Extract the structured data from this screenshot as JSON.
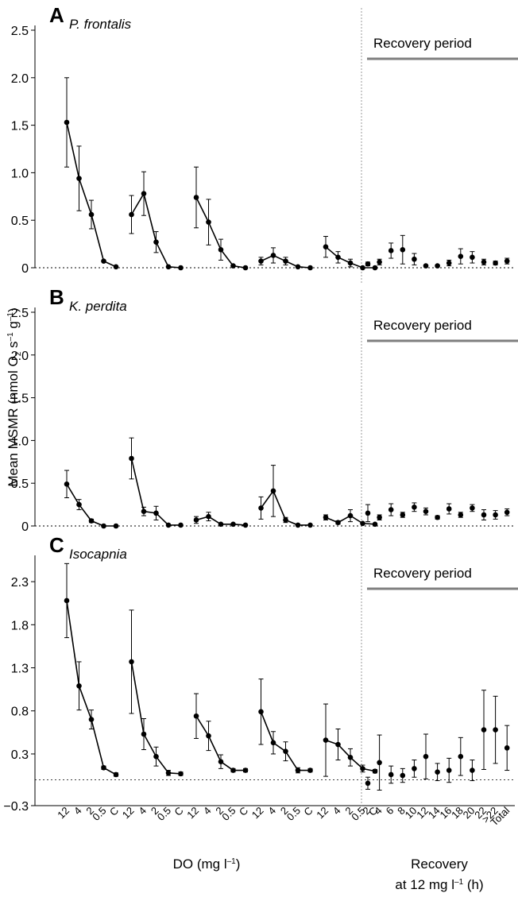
{
  "figure": {
    "ylabel_html_parts": [
      "Mean MSMR (nmol O",
      "2",
      " s",
      "–1",
      " g",
      "–1",
      ")"
    ],
    "xlabel_do": [
      "DO (mg l",
      "–1",
      ")"
    ],
    "xlabel_recovery_line1": "Recovery",
    "xlabel_recovery_line2": [
      "at 12 mg l",
      "–1",
      " (h)"
    ],
    "recovery_label": "Recovery period",
    "do_tick_labels": [
      "12",
      "4",
      "2",
      "0.5",
      "C"
    ],
    "recovery_tick_labels": [
      "2",
      "4",
      "6",
      "8",
      "10",
      "12",
      "14",
      "16",
      "18",
      "20",
      "22",
      ">22",
      "Total"
    ],
    "colors": {
      "line": "#000000",
      "recovery_bar": "#7f7f7f",
      "divider": "#9a9a9a"
    }
  },
  "chart_data": [
    {
      "type": "line",
      "panel_letter": "A",
      "title": "P. frontalis",
      "ylim": [
        0,
        2.5
      ],
      "yticks": [
        "0",
        "0.5",
        "1.0",
        "1.5",
        "2.0",
        "2.5"
      ],
      "ytick_values": [
        0,
        0.5,
        1.0,
        1.5,
        2.0,
        2.5
      ],
      "series": [
        {
          "values": [
            1.53,
            0.94,
            0.56,
            0.07,
            0.01
          ],
          "err": [
            0.47,
            0.34,
            0.15,
            0.01,
            0.01
          ]
        },
        {
          "values": [
            0.56,
            0.78,
            0.27,
            0.01,
            0.0
          ],
          "err": [
            0.2,
            0.23,
            0.11,
            0.01,
            0.01
          ]
        },
        {
          "values": [
            0.74,
            0.48,
            0.19,
            0.02,
            0.0
          ],
          "err": [
            0.32,
            0.24,
            0.11,
            0.01,
            0.01
          ]
        },
        {
          "values": [
            0.07,
            0.13,
            0.07,
            0.01,
            0.0
          ],
          "err": [
            0.04,
            0.08,
            0.04,
            0.01,
            0.01
          ]
        },
        {
          "values": [
            0.22,
            0.11,
            0.05,
            0.0,
            0.0
          ],
          "err": [
            0.11,
            0.06,
            0.04,
            0.01,
            0.01
          ]
        }
      ],
      "recovery": {
        "values": [
          0.04,
          0.06,
          0.18,
          0.19,
          0.09,
          0.02,
          0.02,
          0.05,
          0.12,
          0.11,
          0.06,
          0.05,
          0.07
        ],
        "err": [
          0.02,
          0.03,
          0.08,
          0.15,
          0.06,
          0.01,
          0.01,
          0.03,
          0.08,
          0.06,
          0.03,
          0.02,
          0.03
        ]
      }
    },
    {
      "type": "line",
      "panel_letter": "B",
      "title": "K. perdita",
      "ylim": [
        0,
        2.5
      ],
      "yticks": [
        "0",
        "0.5",
        "1.0",
        "1.5",
        "2.0",
        "2.5"
      ],
      "ytick_values": [
        0,
        0.5,
        1.0,
        1.5,
        2.0,
        2.5
      ],
      "series": [
        {
          "values": [
            0.49,
            0.25,
            0.06,
            0.0,
            0.0
          ],
          "err": [
            0.16,
            0.06,
            0.02,
            0.01,
            0.01
          ]
        },
        {
          "values": [
            0.79,
            0.17,
            0.15,
            0.01,
            0.01
          ],
          "err": [
            0.24,
            0.05,
            0.08,
            0.01,
            0.01
          ]
        },
        {
          "values": [
            0.07,
            0.11,
            0.02,
            0.02,
            0.01
          ],
          "err": [
            0.04,
            0.05,
            0.01,
            0.01,
            0.01
          ]
        },
        {
          "values": [
            0.21,
            0.41,
            0.07,
            0.01,
            0.01
          ],
          "err": [
            0.13,
            0.3,
            0.03,
            0.01,
            0.01
          ]
        },
        {
          "values": [
            0.1,
            0.04,
            0.12,
            0.03,
            0.02
          ],
          "err": [
            0.03,
            0.02,
            0.07,
            0.01,
            0.01
          ]
        }
      ],
      "recovery": {
        "values": [
          0.15,
          0.1,
          0.19,
          0.13,
          0.22,
          0.17,
          0.1,
          0.2,
          0.13,
          0.21,
          0.13,
          0.13,
          0.16
        ],
        "err": [
          0.1,
          0.03,
          0.07,
          0.03,
          0.05,
          0.04,
          0.02,
          0.06,
          0.03,
          0.04,
          0.06,
          0.05,
          0.04
        ]
      }
    },
    {
      "type": "line",
      "panel_letter": "C",
      "title": "Isocapnia",
      "ylim": [
        -0.3,
        2.55
      ],
      "yticks": [
        "−0.3",
        "0.3",
        "0.8",
        "1.3",
        "1.8",
        "2.3"
      ],
      "ytick_values": [
        -0.3,
        0.3,
        0.8,
        1.3,
        1.8,
        2.3
      ],
      "series": [
        {
          "values": [
            2.08,
            1.09,
            0.7,
            0.14,
            0.06
          ],
          "err": [
            0.43,
            0.28,
            0.11,
            0.02,
            0.02
          ]
        },
        {
          "values": [
            1.37,
            0.53,
            0.27,
            0.08,
            0.07
          ],
          "err": [
            0.6,
            0.18,
            0.11,
            0.03,
            0.02
          ]
        },
        {
          "values": [
            0.74,
            0.51,
            0.21,
            0.11,
            0.11
          ],
          "err": [
            0.26,
            0.17,
            0.08,
            0.02,
            0.02
          ]
        },
        {
          "values": [
            0.79,
            0.43,
            0.33,
            0.11,
            0.11
          ],
          "err": [
            0.38,
            0.13,
            0.11,
            0.03,
            0.02
          ]
        },
        {
          "values": [
            0.46,
            0.41,
            0.26,
            0.13,
            0.1
          ],
          "err": [
            0.42,
            0.18,
            0.1,
            0.04,
            0.02
          ]
        }
      ],
      "recovery": {
        "values": [
          -0.04,
          0.2,
          0.06,
          0.05,
          0.13,
          0.27,
          0.09,
          0.11,
          0.27,
          0.11,
          0.58,
          0.58,
          0.37
        ],
        "err": [
          0.07,
          0.32,
          0.1,
          0.08,
          0.1,
          0.26,
          0.1,
          0.14,
          0.22,
          0.12,
          0.46,
          0.39,
          0.26
        ]
      }
    }
  ]
}
